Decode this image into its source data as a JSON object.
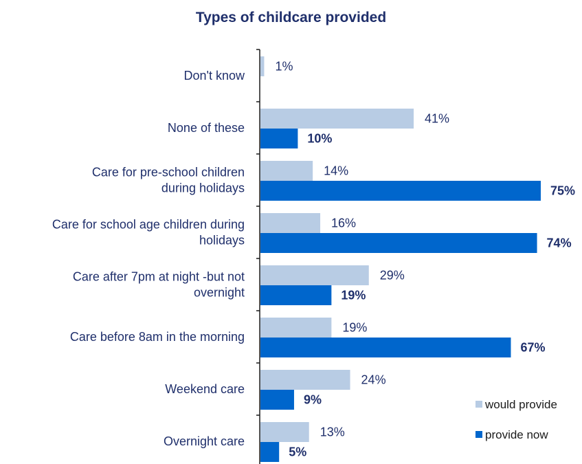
{
  "chart_data": {
    "type": "bar",
    "orientation": "horizontal",
    "title": "Types of childcare provided",
    "categories": [
      [
        "Don't know"
      ],
      [
        "None of these"
      ],
      [
        "Care for pre-school children",
        "during holidays"
      ],
      [
        "Care for school age  children during",
        "holidays"
      ],
      [
        "Care after 7pm at night -but not",
        "overnight"
      ],
      [
        "Care before 8am in the morning"
      ],
      [
        "Weekend care"
      ],
      [
        "Overnight care"
      ]
    ],
    "series": [
      {
        "name": "would provide",
        "color": "#b8cce4",
        "values": [
          1,
          41,
          14,
          16,
          29,
          19,
          24,
          13
        ],
        "labels": [
          "1%",
          "41%",
          "14%",
          "16%",
          "29%",
          "19%",
          "24%",
          "13%"
        ]
      },
      {
        "name": "provide now",
        "color": "#0066cc",
        "values": [
          null,
          10,
          75,
          74,
          19,
          67,
          9,
          5
        ],
        "labels": [
          "",
          "10%",
          "75%",
          "74%",
          "19%",
          "67%",
          "9%",
          "5%"
        ]
      }
    ],
    "xlim": [
      0,
      80
    ],
    "grid": false,
    "legend": "bottom-right"
  }
}
